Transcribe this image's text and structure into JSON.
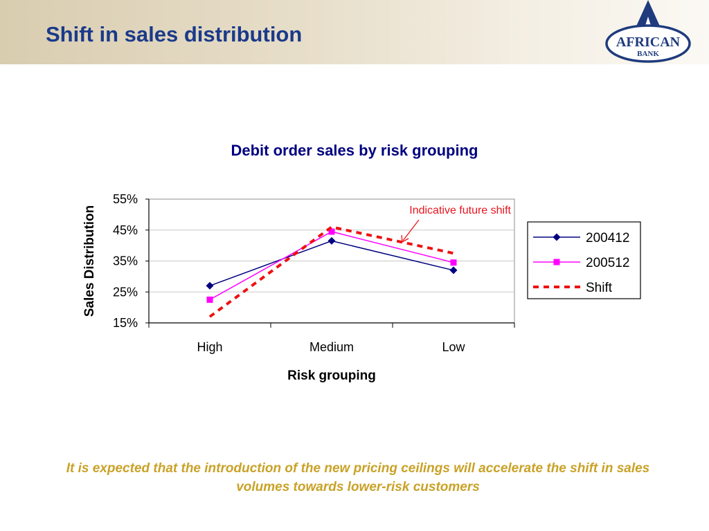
{
  "header": {
    "title": "Shift in sales distribution"
  },
  "logo": {
    "line1": "AFRICAN",
    "line2": "BANK"
  },
  "chart_data": {
    "type": "line",
    "title": "Debit order sales by risk grouping",
    "xlabel": "Risk grouping",
    "ylabel": "Sales Distribution",
    "categories": [
      "High",
      "Medium",
      "Low"
    ],
    "ylim": [
      0.15,
      0.55
    ],
    "yticks": [
      "55%",
      "45%",
      "35%",
      "25%",
      "15%"
    ],
    "ytick_values": [
      0.55,
      0.45,
      0.35,
      0.25,
      0.15
    ],
    "grid": true,
    "legend_position": "right",
    "series": [
      {
        "name": "200412",
        "values": [
          0.27,
          0.415,
          0.32
        ],
        "color": "#000080",
        "marker": "diamond"
      },
      {
        "name": "200512",
        "values": [
          0.225,
          0.445,
          0.345
        ],
        "color": "#ff00ff",
        "marker": "square"
      },
      {
        "name": "Shift",
        "values": [
          0.17,
          0.46,
          0.375
        ],
        "color": "#ee1111",
        "dashed": true
      }
    ],
    "annotation": "Indicative future shift"
  },
  "footer": {
    "note": "It is expected that the introduction of the new pricing ceilings will accelerate the shift in sales volumes towards lower-risk customers"
  }
}
